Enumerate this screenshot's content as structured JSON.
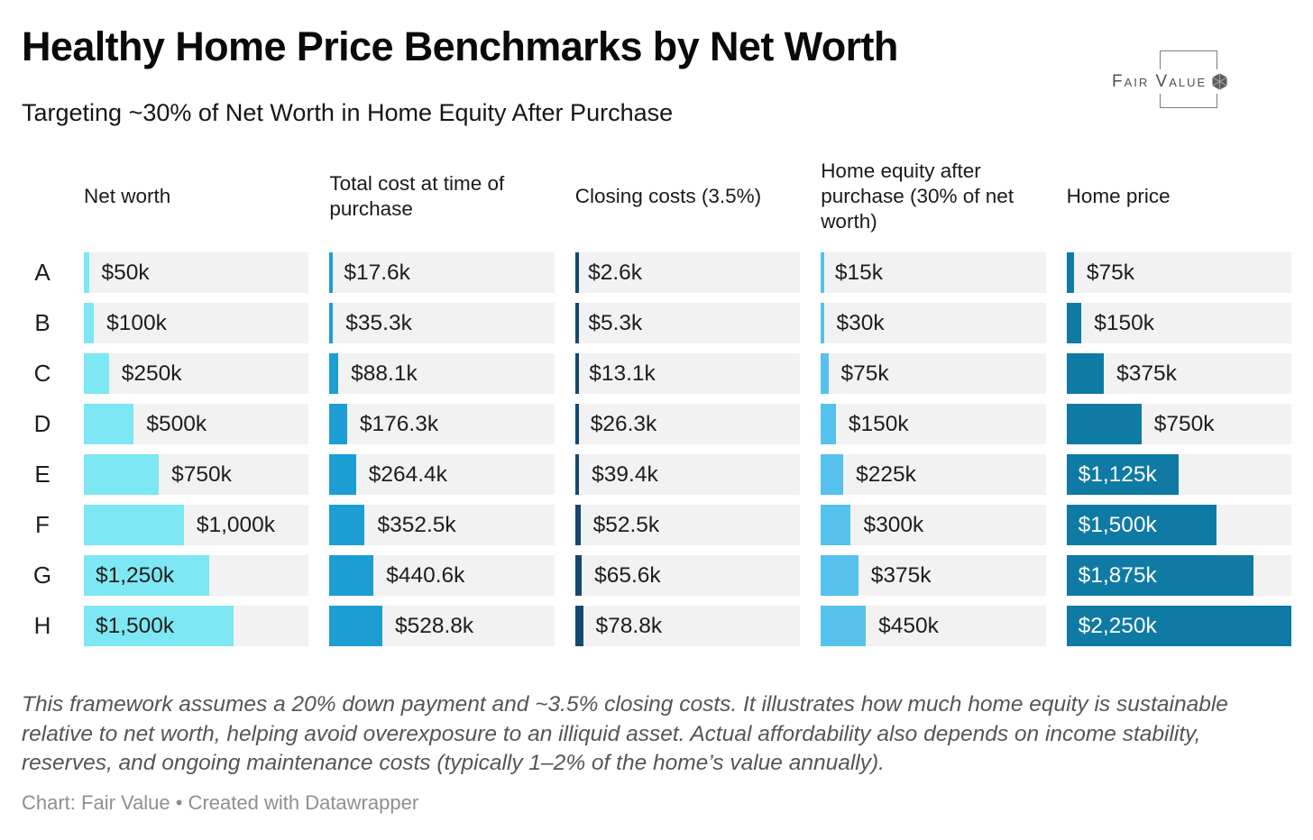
{
  "title": "Healthy Home Price Benchmarks by Net Worth",
  "subtitle": "Targeting ~30% of Net Worth in Home Equity After Purchase",
  "logo": {
    "brand": "Fair Value",
    "icon": "hexagon-gem-icon"
  },
  "chart_data": {
    "type": "table",
    "title": "Healthy Home Price Benchmarks by Net Worth",
    "subtitle": "Targeting ~30% of Net Worth in Home Equity After Purchase",
    "layout_hints": {
      "bars_scaled_to_max_k": 2250,
      "cell_background": "#f2f2f2",
      "grid": "8 rows x 5 bar columns, row letters at left"
    },
    "scale_max_k": 2250,
    "row_labels": [
      "A",
      "B",
      "C",
      "D",
      "E",
      "F",
      "G",
      "H"
    ],
    "columns": [
      {
        "header": "Net worth",
        "color": "#7DE7F4",
        "inside_label_color": "#1d1d1d",
        "values_k": [
          50,
          100,
          250,
          500,
          750,
          1000,
          1250,
          1500
        ],
        "labels": [
          "$50k",
          "$100k",
          "$250k",
          "$500k",
          "$750k",
          "$1,000k",
          "$1,250k",
          "$1,500k"
        ]
      },
      {
        "header": "Total cost at time of purchase",
        "color": "#1C9ED3",
        "inside_label_color": "#ffffff",
        "values_k": [
          17.6,
          35.3,
          88.1,
          176.3,
          264.4,
          352.5,
          440.6,
          528.8
        ],
        "labels": [
          "$17.6k",
          "$35.3k",
          "$88.1k",
          "$176.3k",
          "$264.4k",
          "$352.5k",
          "$440.6k",
          "$528.8k"
        ]
      },
      {
        "header": "Closing costs (3.5%)",
        "color": "#14496E",
        "inside_label_color": "#ffffff",
        "values_k": [
          2.6,
          5.3,
          13.1,
          26.3,
          39.4,
          52.5,
          65.6,
          78.8
        ],
        "labels": [
          "$2.6k",
          "$5.3k",
          "$13.1k",
          "$26.3k",
          "$39.4k",
          "$52.5k",
          "$65.6k",
          "$78.8k"
        ]
      },
      {
        "header": "Home equity after purchase (30% of net worth)",
        "color": "#55C1EC",
        "inside_label_color": "#1d1d1d",
        "values_k": [
          15,
          30,
          75,
          150,
          225,
          300,
          375,
          450
        ],
        "labels": [
          "$15k",
          "$30k",
          "$75k",
          "$150k",
          "$225k",
          "$300k",
          "$375k",
          "$450k"
        ]
      },
      {
        "header": "Home price",
        "color": "#0F7AA4",
        "inside_label_color": "#ffffff",
        "values_k": [
          75,
          150,
          375,
          750,
          1125,
          1500,
          1875,
          2250
        ],
        "labels": [
          "$75k",
          "$150k",
          "$375k",
          "$750k",
          "$1,125k",
          "$1,500k",
          "$1,875k",
          "$2,250k"
        ]
      }
    ]
  },
  "footer": {
    "note": "This framework assumes a 20% down payment and ~3.5% closing costs. It illustrates how much home equity is sustainable relative to net worth, helping avoid overexposure to an illiquid asset. Actual affordability also depends on income stability, reserves, and ongoing maintenance costs (typically 1–2% of the home’s value annually).",
    "credit": "Chart: Fair Value • Created with Datawrapper"
  }
}
